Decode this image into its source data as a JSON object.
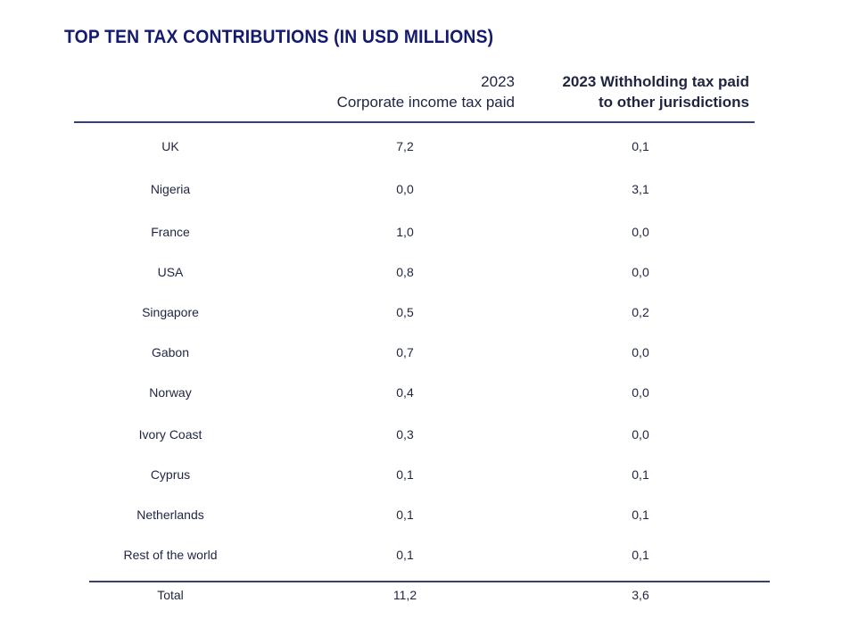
{
  "title": "TOP TEN TAX CONTRIBUTIONS (IN USD MILLIONS)",
  "columns": {
    "cit": {
      "line1": "2023",
      "line2": "Corporate income tax paid"
    },
    "wht": {
      "line1": "2023 Withholding tax paid",
      "line2": "to other jurisdictions"
    }
  },
  "rows": [
    {
      "country": "UK",
      "cit": "7,2",
      "wht": "0,1"
    },
    {
      "country": "Nigeria",
      "cit": "0,0",
      "wht": "3,1"
    },
    {
      "country": "France",
      "cit": "1,0",
      "wht": "0,0"
    },
    {
      "country": "USA",
      "cit": "0,8",
      "wht": "0,0"
    },
    {
      "country": "Singapore",
      "cit": "0,5",
      "wht": "0,2"
    },
    {
      "country": "Gabon",
      "cit": "0,7",
      "wht": "0,0"
    },
    {
      "country": "Norway",
      "cit": "0,4",
      "wht": "0,0"
    },
    {
      "country": "Ivory Coast",
      "cit": "0,3",
      "wht": "0,0"
    },
    {
      "country": "Cyprus",
      "cit": "0,1",
      "wht": "0,1"
    },
    {
      "country": "Netherlands",
      "cit": "0,1",
      "wht": "0,1"
    },
    {
      "country": "Rest of the world",
      "cit": "0,1",
      "wht": "0,1"
    }
  ],
  "total": {
    "label": "Total",
    "cit": "11,2",
    "wht": "3,6"
  }
}
